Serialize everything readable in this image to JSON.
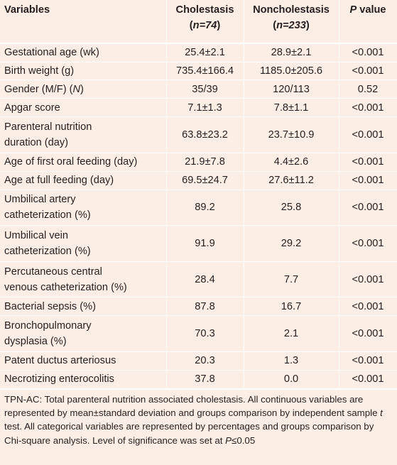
{
  "header": {
    "variables": "Variables",
    "cholestasis": "Cholestasis",
    "cholestasis_n": "n=74",
    "noncholestasis": "Noncholestasis",
    "noncholestasis_n": "n=233",
    "p_letter": "P",
    "p_rest": " value"
  },
  "rows": [
    {
      "label": "Gestational age (wk)",
      "chol": "25.4±2.1",
      "nonchol": "28.9±2.1",
      "p": "<0.001"
    },
    {
      "label": "Birth weight (g)",
      "chol": "735.4±166.4",
      "nonchol": "1185.0±205.6",
      "p": "<0.001"
    },
    {
      "label_pre": "Gender (M/F) (",
      "label_italic": "N",
      "label_post": ")",
      "chol": "35/39",
      "nonchol": "120/113",
      "p": "0.52"
    },
    {
      "label": "Apgar score",
      "chol": "7.1±1.3",
      "nonchol": "7.8±1.1",
      "p": "<0.001"
    },
    {
      "label_line1": "Parenteral nutrition",
      "label_line2": "duration (day)",
      "chol": "63.8±23.2",
      "nonchol": "23.7±10.9",
      "p": "<0.001"
    },
    {
      "label": "Age of first oral feeding (day)",
      "chol": "21.9±7.8",
      "nonchol": "4.4±2.6",
      "p": "<0.001"
    },
    {
      "label": "Age at full feeding (day)",
      "chol": "69.5±24.7",
      "nonchol": "27.6±11.2",
      "p": "<0.001"
    },
    {
      "label_line1": "Umbilical artery",
      "label_line2": "catheterization (%)",
      "chol": "89.2",
      "nonchol": "25.8",
      "p": "<0.001"
    },
    {
      "label_line1": "Umbilical vein",
      "label_line2": "catheterization (%)",
      "chol": "91.9",
      "nonchol": "29.2",
      "p": "<0.001"
    },
    {
      "label_line1": "Percutaneous central",
      "label_line2": "venous catheterization (%)",
      "chol": "28.4",
      "nonchol": "7.7",
      "p": "<0.001"
    },
    {
      "label": "Bacterial sepsis (%)",
      "chol": "87.8",
      "nonchol": "16.7",
      "p": "<0.001"
    },
    {
      "label_line1": "Bronchopulmonary",
      "label_line2": "dysplasia (%)",
      "chol": "70.3",
      "nonchol": "2.1",
      "p": "<0.001"
    },
    {
      "label": "Patent ductus arteriosus",
      "chol": "20.3",
      "nonchol": "1.3",
      "p": "<0.001"
    },
    {
      "label": "Necrotizing enterocolitis",
      "chol": "37.8",
      "nonchol": "0.0",
      "p": "<0.001"
    }
  ],
  "footnote": {
    "part1": "TPN-AC: Total parenteral nutrition associated cholestasis. All continuous variables are represented by mean±standard deviation and groups comparison by independent sample ",
    "t_letter": "t",
    "part2": " test. All categorical variables are represented by percentages and groups comparison by Chi-square analysis. Level of significance was set at ",
    "p_letter": "P",
    "part3": "≤0.05"
  },
  "colors": {
    "background": "#fdeee5",
    "rule": "#ffffff",
    "text": "#231f20"
  }
}
